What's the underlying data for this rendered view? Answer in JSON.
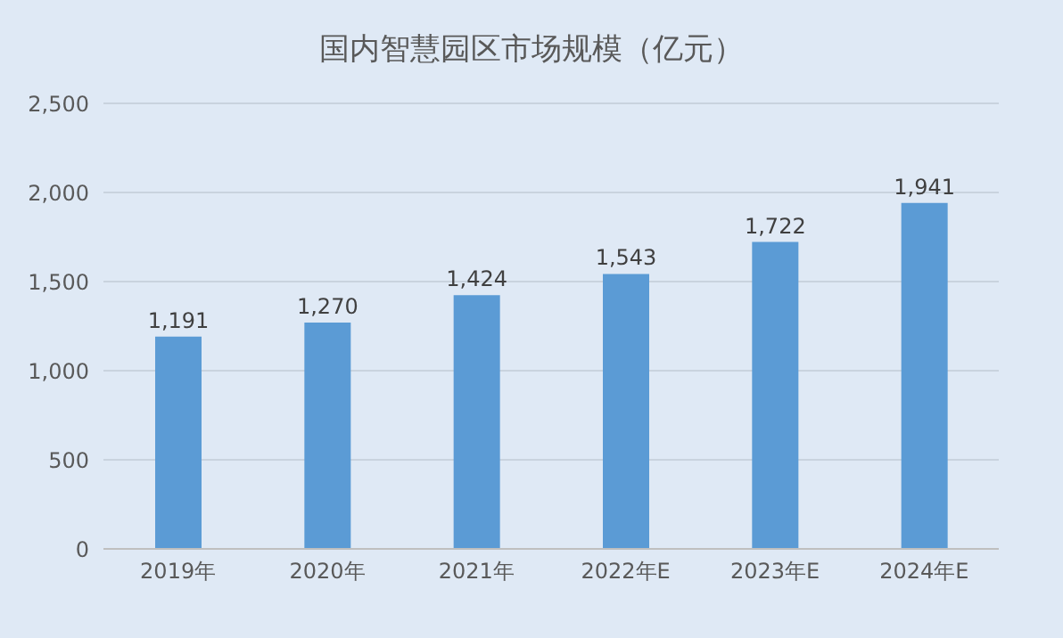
{
  "chart_data": {
    "type": "bar",
    "title": "国内智慧园区市场规模（亿元）",
    "categories": [
      "2019年",
      "2020年",
      "2021年",
      "2022年E",
      "2023年E",
      "2024年E"
    ],
    "values": [
      1191,
      1270,
      1424,
      1543,
      1722,
      1941
    ],
    "color": "#5b9bd5",
    "ylim": [
      0,
      2500
    ],
    "yticks": [
      {
        "value": 0,
        "label": "0"
      },
      {
        "value": 500,
        "label": "500"
      },
      {
        "value": 1000,
        "label": "1,000"
      },
      {
        "value": 1500,
        "label": "1,500"
      },
      {
        "value": 2000,
        "label": "2,000"
      },
      {
        "value": 2500,
        "label": "2,500"
      }
    ],
    "value_labels": [
      "1,191",
      "1,270",
      "1,424",
      "1,543",
      "1,722",
      "1,941"
    ],
    "grid": "y"
  }
}
